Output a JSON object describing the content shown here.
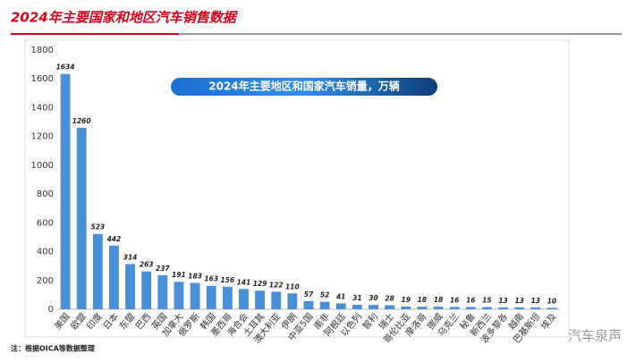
{
  "header": {
    "title": "2024年主要国家和地区汽车销售数据"
  },
  "chart_data": {
    "type": "bar",
    "title": "2024年主要地区和国家汽车销量，万辆",
    "categories": [
      "美国",
      "欧盟",
      "印度",
      "日本",
      "东盟",
      "巴西",
      "英国",
      "加拿大",
      "俄罗斯",
      "韩国",
      "墨西哥",
      "海合会",
      "土耳其",
      "澳大利亚",
      "伊朗",
      "中亚5国",
      "南非",
      "阿根廷",
      "以色列",
      "智利",
      "瑞士",
      "哥伦比亚",
      "摩洛哥",
      "挪威",
      "乌克兰",
      "秘鲁",
      "新西兰",
      "波多黎各",
      "越南",
      "巴基斯坦",
      "埃及"
    ],
    "values": [
      1634,
      1260,
      523,
      442,
      314,
      263,
      237,
      191,
      183,
      163,
      156,
      141,
      129,
      122,
      110,
      57,
      52,
      41,
      31,
      30,
      28,
      19,
      18,
      18,
      16,
      16,
      15,
      13,
      13,
      13,
      10
    ],
    "color": "#4a90d9",
    "ylim": [
      0,
      1800
    ],
    "yticks": [
      0,
      200,
      400,
      600,
      800,
      1000,
      1200,
      1400,
      1600,
      1800
    ],
    "grid": false
  },
  "footnote": "注：根据OICA等数据整理",
  "watermark": "汽车泉声"
}
